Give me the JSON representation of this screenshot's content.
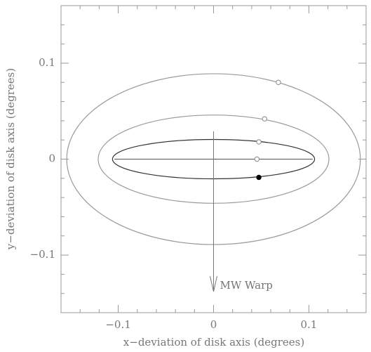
{
  "chart_data": {
    "type": "scatter",
    "xlabel": "x−deviation of disk axis (degrees)",
    "ylabel": "y−deviation of disk axis (degrees)",
    "xlim": [
      -0.16,
      0.16
    ],
    "ylim": [
      -0.16,
      0.16
    ],
    "xticks": [
      {
        "value": -0.1,
        "label": "−0.1"
      },
      0,
      0.1
    ],
    "yticks": [
      {
        "value": -0.1,
        "label": "−0.1"
      },
      0,
      0.1
    ],
    "xminorticks": [
      -0.14,
      -0.12,
      -0.08,
      -0.06,
      -0.04,
      -0.02,
      0.02,
      0.04,
      0.06,
      0.08,
      0.12,
      0.14
    ],
    "yminorticks": [
      -0.14,
      -0.12,
      -0.08,
      -0.06,
      -0.04,
      -0.02,
      0.02,
      0.04,
      0.06,
      0.08,
      0.12,
      0.14
    ],
    "ellipses": [
      {
        "a": 0.154,
        "b": 0.089,
        "color": "#9a9a9a"
      },
      {
        "a": 0.121,
        "b": 0.046,
        "color": "#9a9a9a"
      },
      {
        "a": 0.106,
        "b": 0.0205,
        "color": "#333333"
      }
    ],
    "major_axis_line": [
      -0.104,
      0.104
    ],
    "points": {
      "x": [
        0.068,
        0.0535,
        0.0475,
        0.0455,
        0.0475
      ],
      "y": [
        0.08,
        0.042,
        0.018,
        0.0,
        -0.019
      ],
      "filled": [
        false,
        false,
        false,
        false,
        true
      ]
    },
    "arrow": {
      "x": 0,
      "y_start": 0.029,
      "y_end": -0.138,
      "label": "MW Warp"
    }
  }
}
